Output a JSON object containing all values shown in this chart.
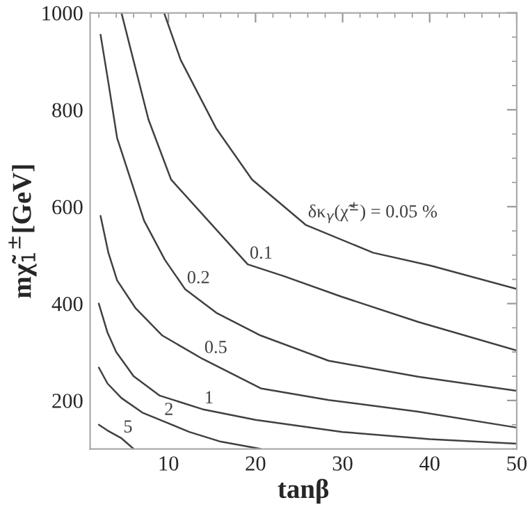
{
  "chart_data": {
    "type": "line",
    "xlabel": "tanβ",
    "ylabel": "mχ̃$_{1}$$^{±}$[GeV]",
    "xlim": [
      1,
      50
    ],
    "ylim": [
      100,
      1000
    ],
    "xticks": [
      10,
      20,
      30,
      40,
      50
    ],
    "yticks": [
      200,
      400,
      600,
      800,
      1000
    ],
    "grid": false,
    "legend": false,
    "marker": "none",
    "line_style": "solid",
    "series": [
      {
        "name": "δκ$_{γ}$(χ̃$^{±}$) = 0.05 %",
        "color": "#404040",
        "x": [
          9.5,
          11.4,
          15.5,
          19.6,
          25.8,
          33.5,
          40.2,
          50
        ],
        "values": [
          1000,
          903,
          761,
          656,
          562,
          505,
          478,
          430
        ]
      },
      {
        "name": "0.1",
        "color": "#404040",
        "x": [
          4.6,
          5.7,
          7.7,
          10.3,
          19.1,
          23.2,
          29.9,
          38.7,
          50
        ],
        "values": [
          1000,
          922,
          780,
          656,
          481,
          457,
          414,
          362,
          303
        ]
      },
      {
        "name": "0.2",
        "color": "#404040",
        "x": [
          2.2,
          3.1,
          4.1,
          7.2,
          9.6,
          11.9,
          15.5,
          20.6,
          28.4,
          38.7,
          50
        ],
        "values": [
          955,
          856,
          742,
          571,
          490,
          430,
          381,
          334,
          282,
          249,
          220
        ]
      },
      {
        "name": "0.5",
        "color": "#404040",
        "x": [
          2.2,
          3.1,
          4.1,
          6.2,
          9.3,
          13.9,
          20.6,
          28.4,
          38.7,
          50
        ],
        "values": [
          581,
          505,
          448,
          391,
          334,
          286,
          225,
          201,
          177,
          144
        ]
      },
      {
        "name": "1",
        "color": "#404040",
        "x": [
          2,
          3,
          4,
          6,
          9,
          13.9,
          20,
          30,
          40,
          50
        ],
        "values": [
          400,
          340,
          300,
          250,
          210,
          182,
          160,
          135,
          120,
          111
        ]
      },
      {
        "name": "2",
        "color": "#404040",
        "x": [
          2,
          3,
          4.6,
          7,
          9.3,
          12.4,
          16,
          20.6
        ],
        "values": [
          268,
          235,
          205,
          175,
          158,
          135,
          115,
          100
        ]
      },
      {
        "name": "5",
        "color": "#404040",
        "x": [
          2,
          3,
          4.6,
          6
        ],
        "values": [
          150,
          138,
          122,
          100
        ]
      }
    ]
  }
}
